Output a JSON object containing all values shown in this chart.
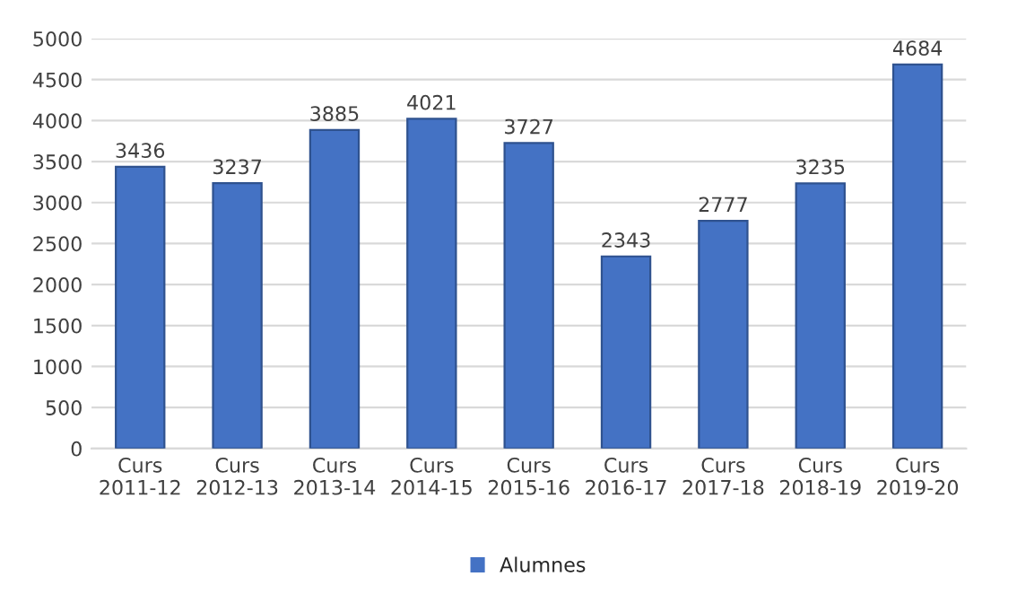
{
  "chart_data": {
    "type": "bar",
    "categories": [
      "Curs\n2011-12",
      "Curs\n2012-13",
      "Curs\n2013-14",
      "Curs\n2014-15",
      "Curs\n2015-16",
      "Curs\n2016-17",
      "Curs\n2017-18",
      "Curs\n2018-19",
      "Curs\n2019-20"
    ],
    "series": [
      {
        "name": "Alumnes",
        "color": "#4472c4",
        "values": [
          3436,
          3237,
          3885,
          4021,
          3727,
          2343,
          2777,
          3235,
          4684
        ]
      }
    ],
    "ylim": [
      0,
      5000
    ],
    "yticks": [
      0,
      500,
      1000,
      1500,
      2000,
      2500,
      3000,
      3500,
      4000,
      4500,
      5000
    ],
    "grid": "y",
    "legend": "bottom",
    "data_labels": true
  }
}
